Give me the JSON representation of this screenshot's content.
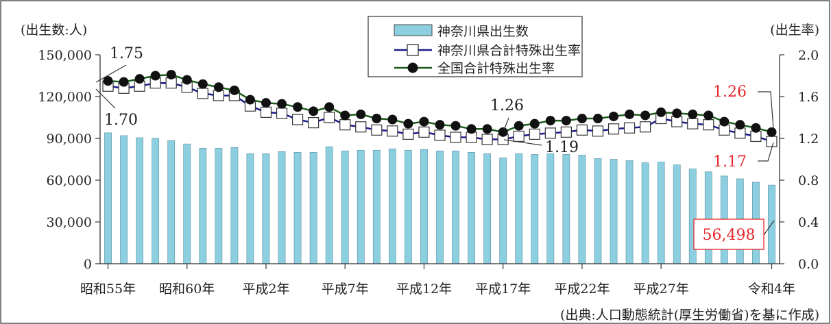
{
  "chart_data": {
    "type": "bar+line",
    "left_unit": "(出生数:人)",
    "right_unit": "(出生率)",
    "source": "(出典:人口動態統計(厚生労働省)を基に作成)",
    "left_axis": {
      "ylim": [
        0,
        150000
      ],
      "ticks": [
        "0",
        "30,000",
        "60,000",
        "90,000",
        "120,000",
        "150,000"
      ]
    },
    "right_axis": {
      "ylim": [
        0,
        2.0
      ],
      "ticks": [
        "0.0",
        "0.4",
        "0.8",
        "1.2",
        "1.6",
        "2.0"
      ]
    },
    "x_tick_labels": [
      "昭和55年",
      "昭和60年",
      "平成2年",
      "平成7年",
      "平成12年",
      "平成17年",
      "平成22年",
      "平成27年",
      "令和4年"
    ],
    "x_tick_label_indices": [
      0,
      5,
      10,
      15,
      20,
      25,
      30,
      35,
      42
    ],
    "categories": [
      "1980",
      "1981",
      "1982",
      "1983",
      "1984",
      "1985",
      "1986",
      "1987",
      "1988",
      "1989",
      "1990",
      "1991",
      "1992",
      "1993",
      "1994",
      "1995",
      "1996",
      "1997",
      "1998",
      "1999",
      "2000",
      "2001",
      "2002",
      "2003",
      "2004",
      "2005",
      "2006",
      "2007",
      "2008",
      "2009",
      "2010",
      "2011",
      "2012",
      "2013",
      "2014",
      "2015",
      "2016",
      "2017",
      "2018",
      "2019",
      "2020",
      "2021",
      "2022"
    ],
    "series": [
      {
        "name": "神奈川県出生数",
        "kind": "bar",
        "axis": "left",
        "color": "#8ccfe0",
        "values": [
          94000,
          92000,
          90500,
          90000,
          88500,
          86000,
          83000,
          83000,
          83500,
          79000,
          79000,
          80500,
          80000,
          80000,
          84000,
          81000,
          81500,
          81500,
          82500,
          81500,
          82000,
          81000,
          81000,
          80000,
          79000,
          76000,
          79000,
          78500,
          79000,
          78500,
          78000,
          75500,
          75000,
          74000,
          72500,
          73000,
          71000,
          68000,
          66000,
          63000,
          61000,
          58500,
          56498
        ]
      },
      {
        "name": "神奈川県合計特殊出生率",
        "kind": "line",
        "axis": "right",
        "color": "#1a1a8c",
        "marker": "square-open",
        "values": [
          1.7,
          1.68,
          1.7,
          1.73,
          1.73,
          1.69,
          1.63,
          1.61,
          1.61,
          1.51,
          1.45,
          1.44,
          1.38,
          1.35,
          1.4,
          1.33,
          1.31,
          1.28,
          1.27,
          1.24,
          1.26,
          1.23,
          1.21,
          1.21,
          1.19,
          1.19,
          1.22,
          1.24,
          1.25,
          1.26,
          1.28,
          1.27,
          1.29,
          1.3,
          1.31,
          1.39,
          1.36,
          1.34,
          1.33,
          1.28,
          1.25,
          1.22,
          1.17
        ]
      },
      {
        "name": "全国合計特殊出生率",
        "kind": "line",
        "axis": "right",
        "color": "#1a5a1a",
        "marker": "circle-filled",
        "values": [
          1.75,
          1.74,
          1.77,
          1.8,
          1.81,
          1.76,
          1.72,
          1.69,
          1.66,
          1.57,
          1.54,
          1.53,
          1.5,
          1.46,
          1.5,
          1.42,
          1.43,
          1.39,
          1.38,
          1.34,
          1.36,
          1.33,
          1.32,
          1.29,
          1.29,
          1.26,
          1.32,
          1.34,
          1.37,
          1.37,
          1.39,
          1.39,
          1.41,
          1.43,
          1.42,
          1.45,
          1.44,
          1.43,
          1.42,
          1.36,
          1.33,
          1.3,
          1.26
        ]
      }
    ],
    "annotations": [
      {
        "text": "1.75",
        "color": "#222222"
      },
      {
        "text": "1.70",
        "color": "#222222"
      },
      {
        "text": "1.26",
        "color": "#222222"
      },
      {
        "text": "1.19",
        "color": "#222222"
      },
      {
        "text": "1.26",
        "color": "#e8282d"
      },
      {
        "text": "1.17",
        "color": "#e8282d"
      },
      {
        "text": "56,498",
        "color": "#e8282d"
      }
    ],
    "legend_position": "top-center",
    "grid": false
  }
}
